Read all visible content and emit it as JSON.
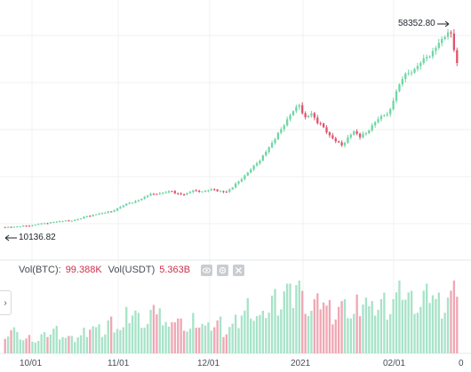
{
  "price_markers": {
    "high": "58352.80",
    "low": "10136.82"
  },
  "volume_legend": {
    "btc_label": "Vol(BTC):",
    "btc_value": "99.388K",
    "usdt_label": "Vol(USDT)",
    "usdt_value": "5.363B",
    "icons": [
      "eye-icon",
      "settings-icon",
      "close-icon"
    ]
  },
  "expand_tab": {
    "glyph": "›"
  },
  "x_axis": {
    "ticks": [
      "10/01",
      "11/01",
      "12/01",
      "2021",
      "02/01",
      "0"
    ]
  },
  "colors": {
    "up": "#6fd6a6",
    "down": "#e0546b",
    "volume_up": "#a7e3c8",
    "volume_down": "#f0a7b3",
    "grid": "#f0f1f2"
  },
  "chart_data": {
    "type": "candlestick",
    "title": "",
    "xlabel": "",
    "ylabel": "",
    "x_ticks": [
      "10/01",
      "11/01",
      "12/01",
      "2021",
      "02/01",
      "0"
    ],
    "high_marker": 58352.8,
    "low_marker": 10136.82,
    "ylim_approx": [
      7000,
      60500
    ],
    "close_series_approx": [
      10140,
      10180,
      10200,
      10300,
      10450,
      10600,
      10900,
      11100,
      11350,
      11500,
      11600,
      11700,
      11900,
      12300,
      12900,
      13200,
      13500,
      13700,
      14000,
      14800,
      15500,
      16200,
      16600,
      17200,
      18000,
      18400,
      18600,
      18800,
      19100,
      18500,
      18200,
      18900,
      19200,
      19000,
      19300,
      19500,
      19100,
      18900,
      20000,
      21500,
      23000,
      24500,
      26000,
      28000,
      30000,
      32000,
      34500,
      37000,
      39000,
      40500,
      37500,
      38500,
      36000,
      35000,
      33000,
      31500,
      30500,
      32500,
      34000,
      32500,
      33500,
      35500,
      37000,
      38000,
      39500,
      44000,
      47000,
      48500,
      49500,
      51000,
      52500,
      54000,
      56000,
      57500,
      58352.8,
      51000
    ],
    "volume_series_approx_k": [
      25,
      30,
      22,
      18,
      20,
      16,
      22,
      26,
      30,
      24,
      20,
      18,
      22,
      28,
      35,
      30,
      26,
      40,
      36,
      30,
      48,
      52,
      44,
      38,
      50,
      62,
      34,
      46,
      40,
      36,
      30,
      44,
      38,
      32,
      36,
      40,
      28,
      34,
      40,
      52,
      60,
      48,
      44,
      56,
      70,
      65,
      80,
      72,
      94,
      68,
      55,
      62,
      70,
      58,
      50,
      60,
      56,
      48,
      64,
      72,
      54,
      60,
      66,
      58,
      70,
      85,
      74,
      68,
      60,
      72,
      80,
      66,
      60,
      72,
      90,
      55
    ],
    "volume_legend": {
      "btc": "99.388K",
      "usdt": "5.363B"
    }
  }
}
